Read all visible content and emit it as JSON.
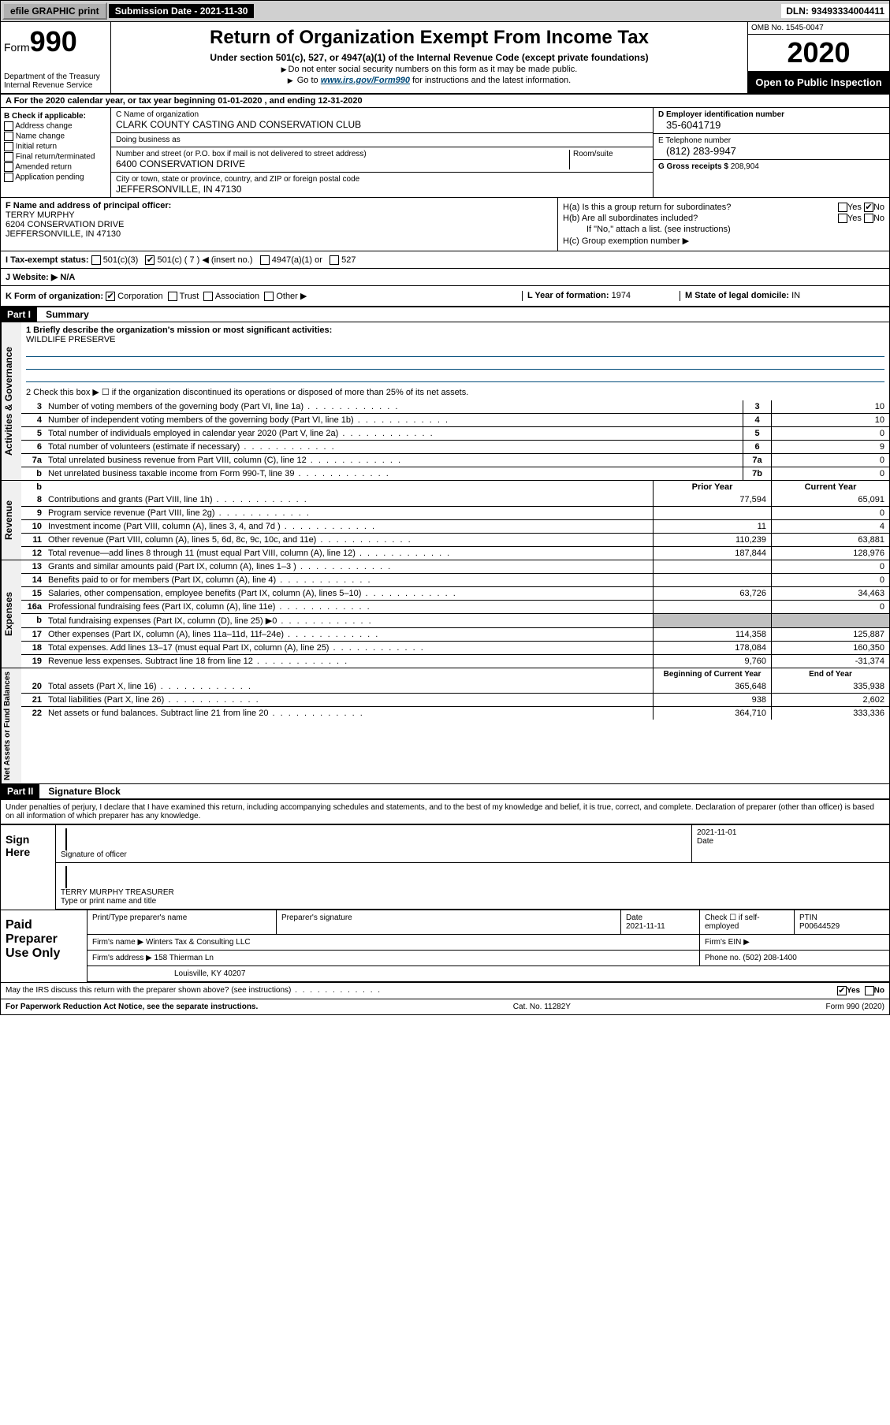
{
  "topbar": {
    "efile": "efile GRAPHIC print",
    "sub_label": "Submission Date - 2021-11-30",
    "dln": "DLN: 93493334004411"
  },
  "header": {
    "form_word": "Form",
    "form_num": "990",
    "dept": "Department of the Treasury\nInternal Revenue Service",
    "title": "Return of Organization Exempt From Income Tax",
    "subtitle": "Under section 501(c), 527, or 4947(a)(1) of the Internal Revenue Code (except private foundations)",
    "note1": "Do not enter social security numbers on this form as it may be made public.",
    "note2_pre": "Go to ",
    "note2_link": "www.irs.gov/Form990",
    "note2_post": " for instructions and the latest information.",
    "omb": "OMB No. 1545-0047",
    "year": "2020",
    "open": "Open to Public Inspection"
  },
  "row_a": "A For the 2020 calendar year, or tax year beginning 01-01-2020    , and ending 12-31-2020",
  "col_b": {
    "header": "B Check if applicable:",
    "items": [
      "Address change",
      "Name change",
      "Initial return",
      "Final return/terminated",
      "Amended return",
      "Application pending"
    ]
  },
  "col_c": {
    "name_label": "C Name of organization",
    "name": "CLARK COUNTY CASTING AND CONSERVATION CLUB",
    "dba_label": "Doing business as",
    "dba": "",
    "street_label": "Number and street (or P.O. box if mail is not delivered to street address)",
    "room_label": "Room/suite",
    "street": "6400 CONSERVATION DRIVE",
    "city_label": "City or town, state or province, country, and ZIP or foreign postal code",
    "city": "JEFFERSONVILLE, IN  47130"
  },
  "col_d": {
    "ein_label": "D Employer identification number",
    "ein": "35-6041719",
    "phone_label": "E Telephone number",
    "phone": "(812) 283-9947",
    "gross_label": "G Gross receipts $",
    "gross": "208,904"
  },
  "section_f": {
    "label": "F  Name and address of principal officer:",
    "name": "TERRY MURPHY",
    "street": "6204 CONSERVATION DRIVE",
    "city": "JEFFERSONVILLE, IN  47130"
  },
  "section_h": {
    "a": "H(a)  Is this a group return for subordinates?",
    "a_yes": "Yes",
    "a_no": "No",
    "b": "H(b)  Are all subordinates included?",
    "b_note": "If \"No,\" attach a list. (see instructions)",
    "c": "H(c)  Group exemption number ▶"
  },
  "section_i": {
    "label": "I    Tax-exempt status:",
    "opts": [
      "501(c)(3)",
      "501(c) ( 7 ) ◀ (insert no.)",
      "4947(a)(1) or",
      "527"
    ]
  },
  "section_j": {
    "label": "J   Website: ▶",
    "val": "N/A"
  },
  "section_k": {
    "label": "K Form of organization:",
    "opts": [
      "Corporation",
      "Trust",
      "Association",
      "Other ▶"
    ],
    "l_label": "L Year of formation:",
    "l_val": "1974",
    "m_label": "M State of legal domicile:",
    "m_val": "IN"
  },
  "part1": {
    "num": "Part I",
    "title": "Summary"
  },
  "governance": {
    "label": "Activities & Governance",
    "q1": "1   Briefly describe the organization's mission or most significant activities:",
    "q1_val": "WILDLIFE PRESERVE",
    "q2": "2    Check this box ▶ ☐  if the organization discontinued its operations or disposed of more than 25% of its net assets.",
    "rows": [
      {
        "n": "3",
        "t": "Number of voting members of the governing body (Part VI, line 1a)",
        "box": "3",
        "v": "10"
      },
      {
        "n": "4",
        "t": "Number of independent voting members of the governing body (Part VI, line 1b)",
        "box": "4",
        "v": "10"
      },
      {
        "n": "5",
        "t": "Total number of individuals employed in calendar year 2020 (Part V, line 2a)",
        "box": "5",
        "v": "0"
      },
      {
        "n": "6",
        "t": "Total number of volunteers (estimate if necessary)",
        "box": "6",
        "v": "9"
      },
      {
        "n": "7a",
        "t": "Total unrelated business revenue from Part VIII, column (C), line 12",
        "box": "7a",
        "v": "0"
      },
      {
        "n": "b",
        "t": "Net unrelated business taxable income from Form 990-T, line 39",
        "box": "7b",
        "v": "0"
      }
    ]
  },
  "revenue": {
    "label": "Revenue",
    "head1": "Prior Year",
    "head2": "Current Year",
    "rows": [
      {
        "n": "8",
        "t": "Contributions and grants (Part VIII, line 1h)",
        "p": "77,594",
        "c": "65,091"
      },
      {
        "n": "9",
        "t": "Program service revenue (Part VIII, line 2g)",
        "p": "",
        "c": "0"
      },
      {
        "n": "10",
        "t": "Investment income (Part VIII, column (A), lines 3, 4, and 7d )",
        "p": "11",
        "c": "4"
      },
      {
        "n": "11",
        "t": "Other revenue (Part VIII, column (A), lines 5, 6d, 8c, 9c, 10c, and 11e)",
        "p": "110,239",
        "c": "63,881"
      },
      {
        "n": "12",
        "t": "Total revenue—add lines 8 through 11 (must equal Part VIII, column (A), line 12)",
        "p": "187,844",
        "c": "128,976"
      }
    ]
  },
  "expenses": {
    "label": "Expenses",
    "rows": [
      {
        "n": "13",
        "t": "Grants and similar amounts paid (Part IX, column (A), lines 1–3 )",
        "p": "",
        "c": "0"
      },
      {
        "n": "14",
        "t": "Benefits paid to or for members (Part IX, column (A), line 4)",
        "p": "",
        "c": "0"
      },
      {
        "n": "15",
        "t": "Salaries, other compensation, employee benefits (Part IX, column (A), lines 5–10)",
        "p": "63,726",
        "c": "34,463"
      },
      {
        "n": "16a",
        "t": "Professional fundraising fees (Part IX, column (A), line 11e)",
        "p": "",
        "c": "0"
      },
      {
        "n": "b",
        "t": "Total fundraising expenses (Part IX, column (D), line 25) ▶0",
        "p": "shade",
        "c": "shade"
      },
      {
        "n": "17",
        "t": "Other expenses (Part IX, column (A), lines 11a–11d, 11f–24e)",
        "p": "114,358",
        "c": "125,887"
      },
      {
        "n": "18",
        "t": "Total expenses. Add lines 13–17 (must equal Part IX, column (A), line 25)",
        "p": "178,084",
        "c": "160,350"
      },
      {
        "n": "19",
        "t": "Revenue less expenses. Subtract line 18 from line 12",
        "p": "9,760",
        "c": "-31,374"
      }
    ]
  },
  "netassets": {
    "label": "Net Assets or Fund Balances",
    "head1": "Beginning of Current Year",
    "head2": "End of Year",
    "rows": [
      {
        "n": "20",
        "t": "Total assets (Part X, line 16)",
        "p": "365,648",
        "c": "335,938"
      },
      {
        "n": "21",
        "t": "Total liabilities (Part X, line 26)",
        "p": "938",
        "c": "2,602"
      },
      {
        "n": "22",
        "t": "Net assets or fund balances. Subtract line 21 from line 20",
        "p": "364,710",
        "c": "333,336"
      }
    ]
  },
  "part2": {
    "num": "Part II",
    "title": "Signature Block"
  },
  "penalties": "Under penalties of perjury, I declare that I have examined this return, including accompanying schedules and statements, and to the best of my knowledge and belief, it is true, correct, and complete. Declaration of preparer (other than officer) is based on all information of which preparer has any knowledge.",
  "sign": {
    "left": "Sign Here",
    "sig_label": "Signature of officer",
    "date_label": "Date",
    "date": "2021-11-01",
    "name": "TERRY MURPHY  TREASURER",
    "name_label": "Type or print name and title"
  },
  "paid": {
    "left": "Paid Preparer Use Only",
    "h1": "Print/Type preparer's name",
    "h2": "Preparer's signature",
    "h3": "Date",
    "h3v": "2021-11-11",
    "h4": "Check ☐ if self-employed",
    "h5": "PTIN",
    "h5v": "P00644529",
    "firm_label": "Firm's name    ▶",
    "firm": "Winters Tax & Consulting LLC",
    "ein_label": "Firm's EIN ▶",
    "addr_label": "Firm's address ▶",
    "addr1": "158 Thierman Ln",
    "addr2": "Louisville, KY  40207",
    "phone_label": "Phone no.",
    "phone": "(502) 208-1400"
  },
  "discuss": "May the IRS discuss this return with the preparer shown above? (see instructions)",
  "discuss_yes": "Yes",
  "discuss_no": "No",
  "footer": {
    "l": "For Paperwork Reduction Act Notice, see the separate instructions.",
    "m": "Cat. No. 11282Y",
    "r": "Form 990 (2020)"
  }
}
